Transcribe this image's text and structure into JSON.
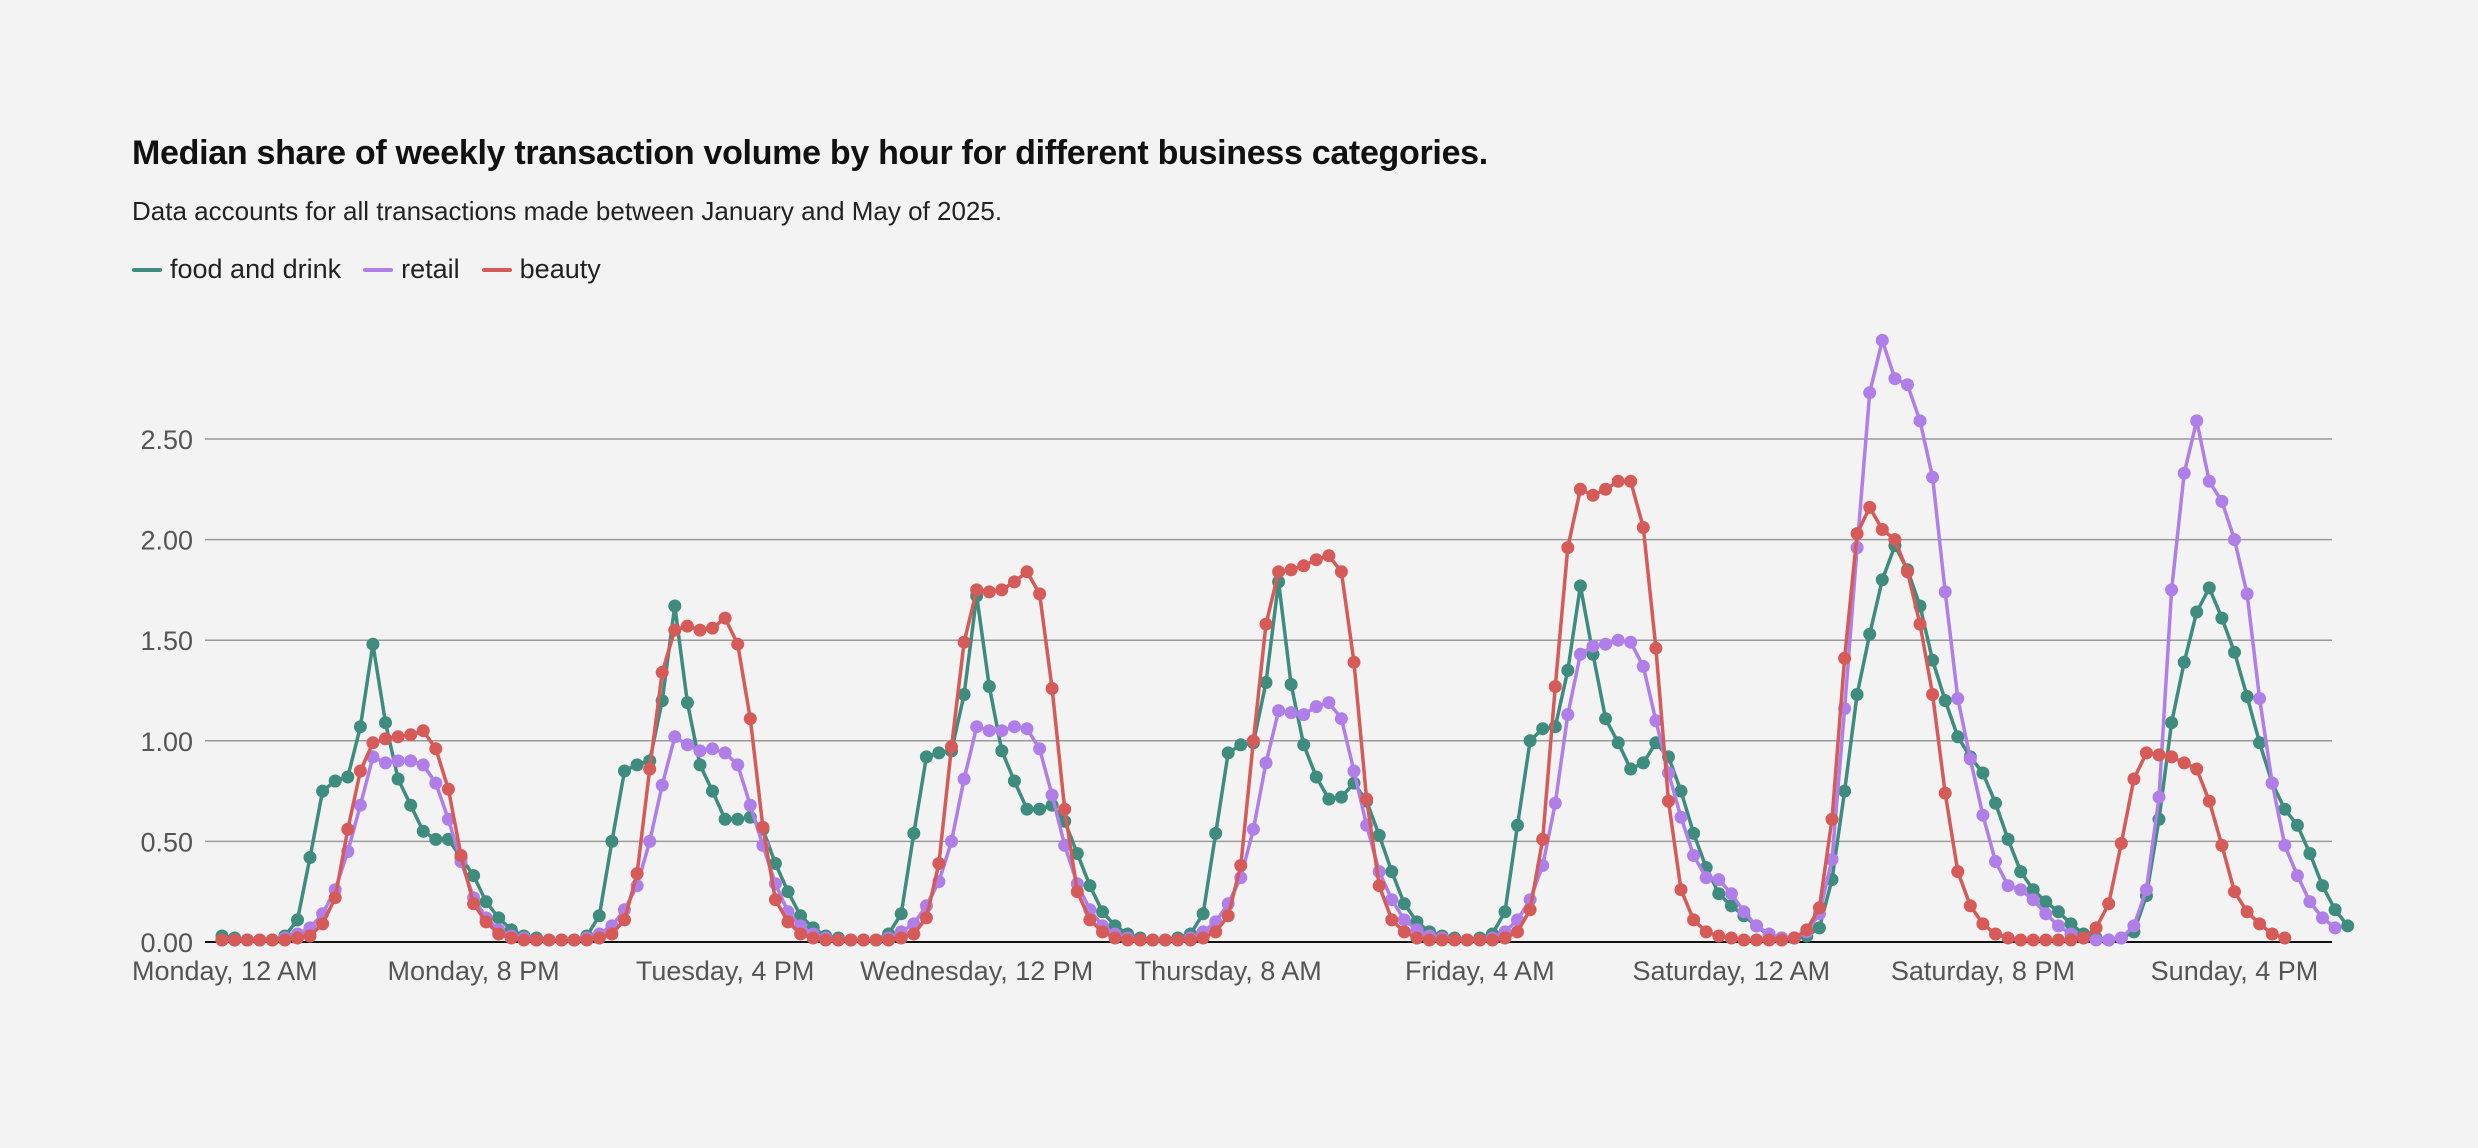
{
  "chart_data": {
    "type": "line",
    "title": "Median share of weekly transaction volume by hour for different business categories.",
    "subtitle": "Data accounts for all transactions made between January and May of 2025.",
    "xlabel": "",
    "ylabel": "",
    "ylim": [
      0,
      3.0
    ],
    "y_ticks": [
      "0.00",
      "0.50",
      "1.00",
      "1.50",
      "2.00",
      "2.50"
    ],
    "x_tick_labels": [
      "Monday, 12 AM",
      "Monday, 8 PM",
      "Tuesday, 4 PM",
      "Wednesday, 12 PM",
      "Thursday, 8 AM",
      "Friday, 4 AM",
      "Saturday, 12 AM",
      "Saturday, 8 PM",
      "Sunday, 4 PM"
    ],
    "x_tick_hours": [
      0,
      20,
      40,
      60,
      80,
      100,
      120,
      140,
      160
    ],
    "grid": "horizontal",
    "legend_position": "top-left",
    "x_unit": "hour of week (0 = Monday, 12 AM)",
    "series": [
      {
        "name": "food and drink",
        "color": "#3d8c7d",
        "values": [
          0.03,
          0.02,
          0.01,
          0.01,
          0.01,
          0.03,
          0.11,
          0.42,
          0.75,
          0.8,
          0.82,
          1.07,
          1.48,
          1.09,
          0.81,
          0.68,
          0.55,
          0.51,
          0.51,
          0.42,
          0.33,
          0.2,
          0.12,
          0.06,
          0.03,
          0.02,
          0.01,
          0.01,
          0.01,
          0.03,
          0.13,
          0.5,
          0.85,
          0.88,
          0.9,
          1.2,
          1.67,
          1.19,
          0.88,
          0.75,
          0.61,
          0.61,
          0.62,
          0.56,
          0.39,
          0.25,
          0.13,
          0.07,
          0.03,
          0.02,
          0.01,
          0.01,
          0.01,
          0.04,
          0.14,
          0.54,
          0.92,
          0.94,
          0.95,
          1.23,
          1.72,
          1.27,
          0.95,
          0.8,
          0.66,
          0.66,
          0.68,
          0.6,
          0.44,
          0.28,
          0.15,
          0.08,
          0.04,
          0.02,
          0.01,
          0.01,
          0.02,
          0.04,
          0.14,
          0.54,
          0.94,
          0.98,
          0.99,
          1.29,
          1.79,
          1.28,
          0.98,
          0.82,
          0.71,
          0.72,
          0.79,
          0.7,
          0.53,
          0.35,
          0.19,
          0.1,
          0.05,
          0.03,
          0.02,
          0.01,
          0.02,
          0.04,
          0.15,
          0.58,
          1.0,
          1.06,
          1.07,
          1.35,
          1.77,
          1.43,
          1.11,
          0.99,
          0.86,
          0.89,
          0.99,
          0.92,
          0.75,
          0.54,
          0.37,
          0.24,
          0.18,
          0.13,
          0.08,
          0.03,
          0.02,
          0.02,
          0.03,
          0.07,
          0.31,
          0.75,
          1.23,
          1.53,
          1.8,
          1.97,
          1.85,
          1.67,
          1.4,
          1.2,
          1.02,
          0.92,
          0.84,
          0.69,
          0.51,
          0.35,
          0.26,
          0.2,
          0.15,
          0.09,
          0.04,
          0.02,
          0.01,
          0.02,
          0.05,
          0.23,
          0.61,
          1.09,
          1.39,
          1.64,
          1.76,
          1.61,
          1.44,
          1.22,
          0.99,
          0.79,
          0.66,
          0.58,
          0.44,
          0.28,
          0.16,
          0.08
        ]
      },
      {
        "name": "retail",
        "color": "#b07ee8",
        "values": [
          0.01,
          0.01,
          0.01,
          0.01,
          0.01,
          0.02,
          0.04,
          0.07,
          0.14,
          0.26,
          0.45,
          0.68,
          0.92,
          0.89,
          0.9,
          0.9,
          0.88,
          0.79,
          0.61,
          0.4,
          0.22,
          0.12,
          0.06,
          0.03,
          0.02,
          0.01,
          0.01,
          0.01,
          0.01,
          0.02,
          0.04,
          0.08,
          0.16,
          0.28,
          0.5,
          0.78,
          1.02,
          0.98,
          0.95,
          0.96,
          0.94,
          0.88,
          0.68,
          0.48,
          0.29,
          0.15,
          0.08,
          0.04,
          0.02,
          0.01,
          0.01,
          0.01,
          0.01,
          0.02,
          0.05,
          0.09,
          0.18,
          0.3,
          0.5,
          0.81,
          1.07,
          1.05,
          1.05,
          1.07,
          1.06,
          0.96,
          0.73,
          0.48,
          0.29,
          0.16,
          0.08,
          0.04,
          0.02,
          0.01,
          0.01,
          0.01,
          0.01,
          0.02,
          0.05,
          0.1,
          0.19,
          0.32,
          0.56,
          0.89,
          1.15,
          1.14,
          1.13,
          1.17,
          1.19,
          1.11,
          0.85,
          0.58,
          0.35,
          0.21,
          0.11,
          0.06,
          0.03,
          0.02,
          0.01,
          0.01,
          0.01,
          0.02,
          0.05,
          0.11,
          0.21,
          0.38,
          0.69,
          1.13,
          1.43,
          1.47,
          1.48,
          1.5,
          1.49,
          1.37,
          1.1,
          0.84,
          0.62,
          0.43,
          0.32,
          0.31,
          0.24,
          0.15,
          0.08,
          0.04,
          0.02,
          0.02,
          0.05,
          0.14,
          0.41,
          1.16,
          1.96,
          2.73,
          2.99,
          2.8,
          2.77,
          2.59,
          2.31,
          1.74,
          1.21,
          0.91,
          0.63,
          0.4,
          0.28,
          0.26,
          0.21,
          0.14,
          0.08,
          0.04,
          0.02,
          0.01,
          0.01,
          0.02,
          0.08,
          0.26,
          0.72,
          1.75,
          2.33,
          2.59,
          2.29,
          2.19,
          2.0,
          1.73,
          1.21,
          0.79,
          0.48,
          0.33,
          0.2,
          0.12,
          0.07
        ]
      },
      {
        "name": "beauty",
        "color": "#d65a57",
        "values": [
          0.01,
          0.01,
          0.01,
          0.01,
          0.01,
          0.01,
          0.02,
          0.03,
          0.09,
          0.22,
          0.56,
          0.85,
          0.99,
          1.01,
          1.02,
          1.03,
          1.05,
          0.96,
          0.76,
          0.43,
          0.19,
          0.1,
          0.04,
          0.02,
          0.01,
          0.01,
          0.01,
          0.01,
          0.01,
          0.01,
          0.02,
          0.04,
          0.11,
          0.34,
          0.86,
          1.34,
          1.55,
          1.57,
          1.55,
          1.56,
          1.61,
          1.48,
          1.11,
          0.57,
          0.21,
          0.1,
          0.04,
          0.02,
          0.01,
          0.01,
          0.01,
          0.01,
          0.01,
          0.01,
          0.02,
          0.04,
          0.12,
          0.39,
          0.97,
          1.49,
          1.75,
          1.74,
          1.75,
          1.79,
          1.84,
          1.73,
          1.26,
          0.66,
          0.25,
          0.11,
          0.05,
          0.02,
          0.01,
          0.01,
          0.01,
          0.01,
          0.01,
          0.01,
          0.02,
          0.05,
          0.13,
          0.38,
          1.0,
          1.58,
          1.84,
          1.85,
          1.87,
          1.9,
          1.92,
          1.84,
          1.39,
          0.71,
          0.28,
          0.11,
          0.05,
          0.02,
          0.01,
          0.01,
          0.01,
          0.01,
          0.01,
          0.01,
          0.02,
          0.05,
          0.16,
          0.51,
          1.27,
          1.96,
          2.25,
          2.22,
          2.25,
          2.29,
          2.29,
          2.06,
          1.46,
          0.7,
          0.26,
          0.11,
          0.05,
          0.03,
          0.02,
          0.01,
          0.01,
          0.01,
          0.01,
          0.02,
          0.06,
          0.17,
          0.61,
          1.41,
          2.03,
          2.16,
          2.05,
          2.0,
          1.84,
          1.58,
          1.23,
          0.74,
          0.35,
          0.18,
          0.09,
          0.04,
          0.02,
          0.01,
          0.01,
          0.01,
          0.01,
          0.01,
          0.02,
          0.07,
          0.19,
          0.49,
          0.81,
          0.94,
          0.93,
          0.92,
          0.89,
          0.86,
          0.7,
          0.48,
          0.25,
          0.15,
          0.09,
          0.04,
          0.02
        ]
      }
    ]
  }
}
